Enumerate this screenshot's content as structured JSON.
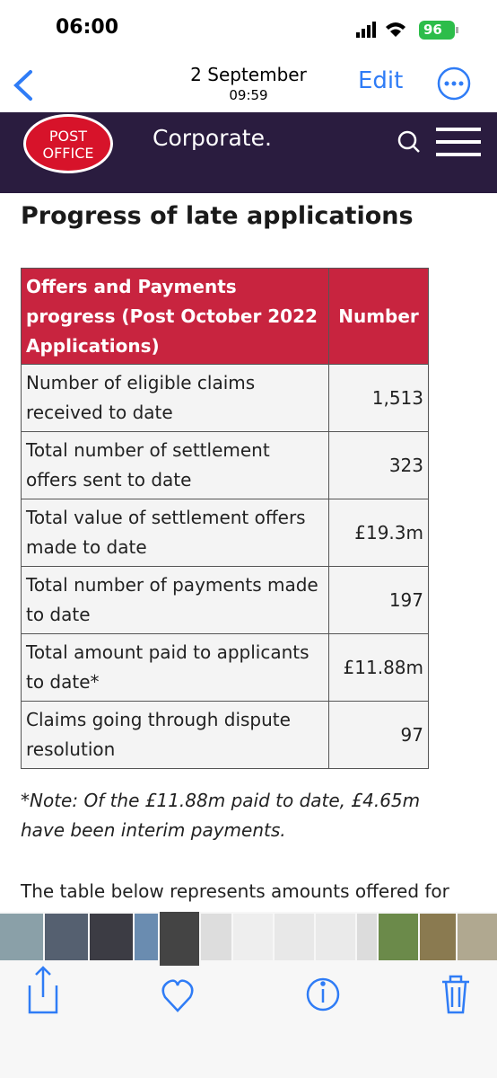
{
  "status_bar": {
    "time": "06:00",
    "battery": "96"
  },
  "nav_bar": {
    "date": "2 September",
    "time": "09:59",
    "edit": "Edit"
  },
  "site_header": {
    "logo_line1": "POST",
    "logo_line2": "OFFICE",
    "brand": "Corporate."
  },
  "article": {
    "heading": "Progress of late applications",
    "table": {
      "header": [
        "Offers and Payments progress (Post October 2022 Applications)",
        "Number"
      ],
      "rows": [
        [
          "Number of eligible claims received to date",
          "1,513"
        ],
        [
          "Total number of settlement offers sent to date",
          "323"
        ],
        [
          "Total value of settlement offers made to date",
          "£19.3m"
        ],
        [
          "Total number of payments made to date",
          "197"
        ],
        [
          "Total amount paid to applicants to date*",
          "£11.88m"
        ],
        [
          "Claims going through dispute resolution",
          "97"
        ]
      ]
    },
    "note": "*Note: Of the £11.88m paid to date, £4.65m have been interim payments.",
    "next_paragraph": "The table below represents amounts offered for"
  }
}
